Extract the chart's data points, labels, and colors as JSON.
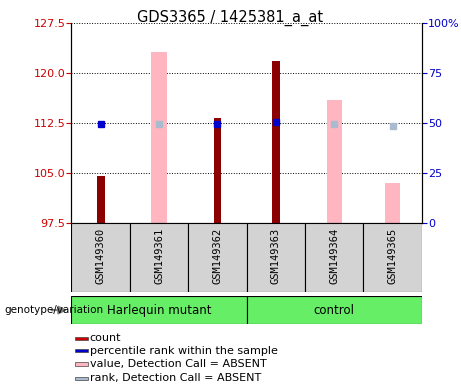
{
  "title": "GDS3365 / 1425381_a_at",
  "samples": [
    "GSM149360",
    "GSM149361",
    "GSM149362",
    "GSM149363",
    "GSM149364",
    "GSM149365"
  ],
  "ylim_left": [
    97.5,
    127.5
  ],
  "ylim_right": [
    0,
    100
  ],
  "yticks_left": [
    97.5,
    105,
    112.5,
    120,
    127.5
  ],
  "yticks_right": [
    0,
    25,
    50,
    75,
    100
  ],
  "red_bars": [
    104.5,
    null,
    113.2,
    121.8,
    null,
    null
  ],
  "pink_bars": [
    null,
    123.2,
    null,
    null,
    116.0,
    103.5
  ],
  "blue_squares": [
    112.3,
    null,
    112.4,
    112.6,
    null,
    null
  ],
  "light_blue_squares": [
    null,
    112.3,
    null,
    null,
    112.3,
    112.0
  ],
  "base_value": 97.5,
  "colors": {
    "red_bar": "#8B0000",
    "pink_bar": "#FFB6C1",
    "blue_sq": "#0000CC",
    "light_blue_sq": "#AABBD0",
    "left_tick": "#CC0000",
    "right_tick": "#0000CC",
    "sample_cell_bg": "#D3D3D3",
    "group_bg": "#66EE66"
  },
  "legend_items": [
    {
      "label": "count",
      "color": "#CC0000"
    },
    {
      "label": "percentile rank within the sample",
      "color": "#0000CC"
    },
    {
      "label": "value, Detection Call = ABSENT",
      "color": "#FFB6C1"
    },
    {
      "label": "rank, Detection Call = ABSENT",
      "color": "#AABBD0"
    }
  ],
  "group_labels": [
    "Harlequin mutant",
    "control"
  ],
  "group_ranges": [
    [
      0,
      2
    ],
    [
      3,
      5
    ]
  ]
}
